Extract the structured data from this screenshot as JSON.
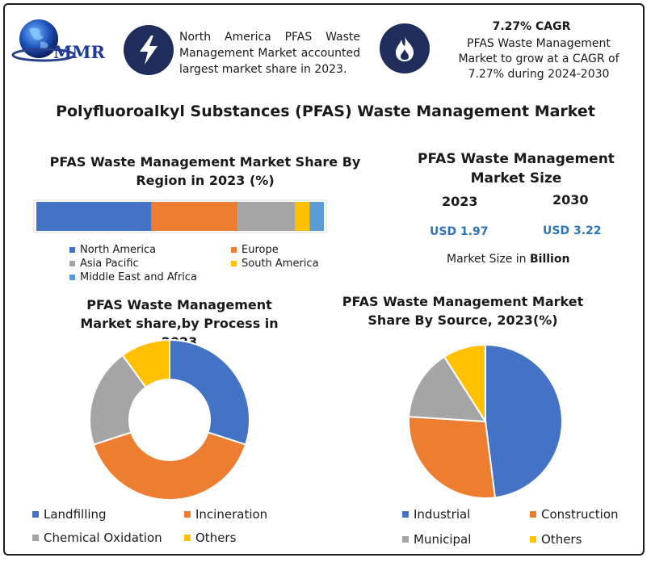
{
  "logo": {
    "text": "MMR"
  },
  "header": {
    "info_text": "North America PFAS Waste Management Market accounted largest market share in 2023.",
    "info_icon": "lightning-icon",
    "cagr_icon": "flame-icon",
    "cagr_title": "7.27% CAGR",
    "cagr_text": "PFAS Waste Management Market to grow at a CAGR of 7.27% during 2024-2030"
  },
  "main_title": "Polyfluoroalkyl Substances (PFAS) Waste Management Market",
  "size": {
    "title": "PFAS Waste Management Market Size",
    "year_2023": "2023",
    "year_2030": "2030",
    "value_2023": "USD 1.97",
    "value_2030": "USD 3.22",
    "footnote_prefix": "Market Size in ",
    "footnote_unit": "Billion"
  },
  "chart_data": [
    {
      "type": "bar",
      "orientation": "horizontal-stacked-100",
      "title": "PFAS Waste Management Market Share By Region in 2023 (%)",
      "categories": [
        "North America",
        "Europe",
        "Asia Pacific",
        "South America",
        "Middle East and Africa"
      ],
      "values": [
        40,
        30,
        20,
        5,
        5
      ],
      "colors": [
        "#4472c4",
        "#ed7d31",
        "#a5a5a5",
        "#ffc000",
        "#5b9bd5"
      ],
      "legend_position": "bottom"
    },
    {
      "type": "pie",
      "variant": "donut",
      "title": "PFAS Waste Management Market share,by Process in 2023",
      "categories": [
        "Landfilling",
        "Incineration",
        "Chemical Oxidation",
        "Others"
      ],
      "values": [
        30,
        40,
        20,
        10
      ],
      "colors": [
        "#4472c4",
        "#ed7d31",
        "#a5a5a5",
        "#ffc000"
      ],
      "legend_position": "bottom"
    },
    {
      "type": "pie",
      "title": "PFAS Waste Management Market Share By Source, 2023(%)",
      "categories": [
        "Industrial",
        "Construction",
        "Municipal",
        "Others"
      ],
      "values": [
        48,
        28,
        15,
        9
      ],
      "colors": [
        "#4472c4",
        "#ed7d31",
        "#a5a5a5",
        "#ffc000"
      ],
      "legend_position": "bottom"
    }
  ]
}
